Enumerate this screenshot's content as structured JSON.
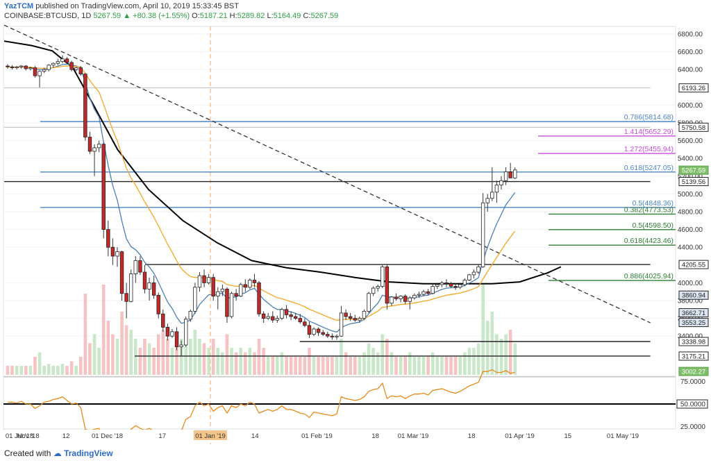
{
  "header": {
    "author": "YazTCM",
    "published_text": "published on TradingView.com, April 10, 2019 15:33:45 BST",
    "symbol": "COINBASE:BTCUSD, 1D",
    "last": "5267.59",
    "change": "+80.38 (+1.55%)",
    "o_label": "O:",
    "o_value": "5187.21",
    "h_label": "H:",
    "h_value": "5289.82",
    "l_label": "L:",
    "l_value": "5164.49",
    "c_label": "C:",
    "c_value": "5267.59"
  },
  "footer": {
    "created_with": "Created with",
    "brand": "TradingView"
  },
  "colors": {
    "up": "#26a69a",
    "down": "#c62828",
    "ema_fast": "#4a7fb5",
    "ema_mid": "#f5a623",
    "sma_long": "#000000",
    "fib_blue": "#4a86c8",
    "fib_green": "#2e7d32",
    "ext_purple": "#c84cdb",
    "rsi": "#e88a1a",
    "volume": "#f3b8b8"
  },
  "chart_data": {
    "type": "candlestick",
    "price_ticks": [
      "6800.00",
      "6600.00",
      "6400.00",
      "6000.00",
      "5800.00",
      "5600.00",
      "5400.00",
      "5200.00",
      "5000.00",
      "4800.00",
      "4600.00",
      "4400.00",
      "4000.00",
      "3800.00",
      "3600.00",
      "3400.00"
    ],
    "rsi_ticks": [
      "75.0000",
      "50.0000",
      "25.0000"
    ],
    "x_ticks": [
      {
        "label": "01 Jul '18",
        "x": 0
      },
      {
        "label": "Nov '18",
        "x": 7
      },
      {
        "label": "12",
        "x": 18
      },
      {
        "label": "01 Dec '18",
        "x": 30
      },
      {
        "label": "17",
        "x": 46
      },
      {
        "label": "01 Jan '19",
        "x": 60
      },
      {
        "label": "14",
        "x": 73
      },
      {
        "label": "01 Feb '19",
        "x": 91
      },
      {
        "label": "18",
        "x": 108
      },
      {
        "label": "01 Mar '19",
        "x": 119
      },
      {
        "label": "18",
        "x": 136
      },
      {
        "label": "01 Apr '19",
        "x": 150
      },
      {
        "label": "15",
        "x": 164
      },
      {
        "label": "01 May '19",
        "x": 180
      }
    ],
    "highlighted_x_tick": "01 Jan '19",
    "level_labels": [
      {
        "text": "6193.26",
        "price": 6193.26
      },
      {
        "text": "5750.58",
        "price": 5750.58
      },
      {
        "text": "5267.59",
        "price": 5267.59
      },
      {
        "text": "5139.56",
        "price": 5139.56
      },
      {
        "text": "4205.55",
        "price": 4205.55
      },
      {
        "text": "3860.94",
        "price": 3860.94
      },
      {
        "text": "3662.71",
        "price": 3662.71
      },
      {
        "text": "3553.25",
        "price": 3553.25
      },
      {
        "text": "3338.98",
        "price": 3338.98
      },
      {
        "text": "3175.21",
        "price": 3175.21
      },
      {
        "text": "3002.27",
        "price": 3002.27
      }
    ],
    "fib_levels": [
      {
        "label": "0.786(5814.68)",
        "price": 5814.68,
        "style": "blue"
      },
      {
        "label": "0.618(5247.05)",
        "price": 5247.05,
        "style": "blue"
      },
      {
        "label": "0.5(4848.36)",
        "price": 4848.36,
        "style": "blue"
      },
      {
        "label": "0.382(4773.53)",
        "price": 4773.53,
        "style": "green"
      },
      {
        "label": "0.5(4598.50)",
        "price": 4598.5,
        "style": "green"
      },
      {
        "label": "0.618(4423.46)",
        "price": 4423.46,
        "style": "green"
      },
      {
        "label": "0.886(4025.94)",
        "price": 4025.94,
        "style": "green"
      }
    ],
    "ext_levels": [
      {
        "label": "1.414(5652.29)",
        "price": 5652.29
      },
      {
        "label": "1.272(5455.94)",
        "price": 5455.94
      }
    ],
    "support_resistance": [
      {
        "price": 6193.26,
        "x_from": 0,
        "x_to": 188,
        "style": "gray"
      },
      {
        "price": 5750.58,
        "x_from": 0,
        "x_to": 188,
        "style": "gray"
      },
      {
        "price": 5139.56,
        "x_from": 0,
        "x_to": 188,
        "style": "black"
      },
      {
        "price": 4205.55,
        "x_from": 41,
        "x_to": 188,
        "style": "black"
      },
      {
        "price": 3338.98,
        "x_from": 86,
        "x_to": 188,
        "style": "black"
      },
      {
        "price": 3175.21,
        "x_from": 38,
        "x_to": 188,
        "style": "black"
      }
    ],
    "candles": [
      [
        6440,
        6460,
        6410,
        6430
      ],
      [
        6430,
        6450,
        6400,
        6420
      ],
      [
        6420,
        6440,
        6400,
        6430
      ],
      [
        6430,
        6450,
        6410,
        6440
      ],
      [
        6440,
        6450,
        6390,
        6410
      ],
      [
        6410,
        6430,
        6390,
        6420
      ],
      [
        6420,
        6440,
        6310,
        6330
      ],
      [
        6330,
        6390,
        6200,
        6380
      ],
      [
        6380,
        6420,
        6360,
        6400
      ],
      [
        6400,
        6460,
        6380,
        6450
      ],
      [
        6450,
        6480,
        6420,
        6470
      ],
      [
        6470,
        6520,
        6450,
        6490
      ],
      [
        6490,
        6560,
        6470,
        6520
      ],
      [
        6520,
        6540,
        6460,
        6480
      ],
      [
        6480,
        6500,
        6380,
        6400
      ],
      [
        6400,
        6430,
        6380,
        6420
      ],
      [
        6420,
        6440,
        6330,
        6350
      ],
      [
        6350,
        6360,
        5600,
        5640
      ],
      [
        5640,
        5700,
        5450,
        5480
      ],
      [
        5480,
        5560,
        5200,
        5520
      ],
      [
        5520,
        5600,
        5470,
        5560
      ],
      [
        5560,
        5580,
        4500,
        4600
      ],
      [
        4600,
        4700,
        4300,
        4400
      ],
      [
        4400,
        4500,
        4200,
        4300
      ],
      [
        4300,
        4400,
        4180,
        4350
      ],
      [
        4350,
        4360,
        3800,
        3880
      ],
      [
        3880,
        4000,
        3600,
        3790
      ],
      [
        3790,
        4150,
        3780,
        4100
      ],
      [
        4100,
        4300,
        4000,
        4250
      ],
      [
        4250,
        4300,
        4090,
        4120
      ],
      [
        4120,
        4200,
        3880,
        3930
      ],
      [
        3930,
        4060,
        3800,
        4000
      ],
      [
        4000,
        4080,
        3820,
        3860
      ],
      [
        3860,
        3890,
        3600,
        3650
      ],
      [
        3650,
        3700,
        3450,
        3500
      ],
      [
        3500,
        3540,
        3350,
        3400
      ],
      [
        3400,
        3480,
        3380,
        3450
      ],
      [
        3450,
        3500,
        3240,
        3280
      ],
      [
        3280,
        3350,
        3180,
        3300
      ],
      [
        3300,
        3620,
        3280,
        3590
      ],
      [
        3590,
        3700,
        3560,
        3680
      ],
      [
        3680,
        4000,
        3650,
        3950
      ],
      [
        3950,
        4120,
        3900,
        4080
      ],
      [
        4080,
        4150,
        3950,
        4000
      ],
      [
        4000,
        4100,
        3980,
        4060
      ],
      [
        4060,
        4100,
        3800,
        3850
      ],
      [
        3850,
        3950,
        3700,
        3900
      ],
      [
        3900,
        3980,
        3850,
        3930
      ],
      [
        3930,
        3950,
        3550,
        3620
      ],
      [
        3620,
        3900,
        3600,
        3880
      ],
      [
        3880,
        3930,
        3800,
        3850
      ],
      [
        3850,
        4000,
        3840,
        3980
      ],
      [
        3980,
        4040,
        3900,
        3950
      ],
      [
        3950,
        4050,
        3930,
        4030
      ],
      [
        4030,
        4100,
        3950,
        4000
      ],
      [
        4000,
        4020,
        3620,
        3650
      ],
      [
        3650,
        3680,
        3550,
        3600
      ],
      [
        3600,
        3660,
        3580,
        3620
      ],
      [
        3620,
        3680,
        3550,
        3580
      ],
      [
        3580,
        3630,
        3550,
        3600
      ],
      [
        3600,
        3720,
        3580,
        3700
      ],
      [
        3700,
        3750,
        3600,
        3640
      ],
      [
        3640,
        3680,
        3580,
        3620
      ],
      [
        3620,
        3660,
        3580,
        3600
      ],
      [
        3600,
        3650,
        3540,
        3560
      ],
      [
        3560,
        3600,
        3500,
        3520
      ],
      [
        3520,
        3560,
        3380,
        3420
      ],
      [
        3420,
        3500,
        3400,
        3480
      ],
      [
        3480,
        3500,
        3400,
        3440
      ],
      [
        3440,
        3470,
        3400,
        3420
      ],
      [
        3420,
        3450,
        3380,
        3400
      ],
      [
        3400,
        3430,
        3360,
        3390
      ],
      [
        3390,
        3420,
        3360,
        3400
      ],
      [
        3400,
        3740,
        3390,
        3660
      ],
      [
        3660,
        3700,
        3580,
        3620
      ],
      [
        3620,
        3660,
        3570,
        3600
      ],
      [
        3600,
        3640,
        3560,
        3580
      ],
      [
        3580,
        3620,
        3550,
        3600
      ],
      [
        3600,
        3700,
        3580,
        3680
      ],
      [
        3680,
        3900,
        3660,
        3880
      ],
      [
        3880,
        3960,
        3850,
        3940
      ],
      [
        3940,
        3980,
        3900,
        3960
      ],
      [
        3960,
        4200,
        3940,
        4180
      ],
      [
        4180,
        4200,
        3700,
        3770
      ],
      [
        3770,
        3850,
        3740,
        3840
      ],
      [
        3840,
        3880,
        3800,
        3820
      ],
      [
        3820,
        3860,
        3780,
        3850
      ],
      [
        3850,
        3870,
        3760,
        3790
      ],
      [
        3790,
        3850,
        3700,
        3830
      ],
      [
        3830,
        3880,
        3810,
        3860
      ],
      [
        3860,
        3900,
        3830,
        3870
      ],
      [
        3870,
        3920,
        3850,
        3900
      ],
      [
        3900,
        3930,
        3860,
        3880
      ],
      [
        3880,
        3990,
        3870,
        3960
      ],
      [
        3960,
        4000,
        3930,
        3980
      ],
      [
        3980,
        4020,
        3950,
        4000
      ],
      [
        4000,
        4040,
        3950,
        3990
      ],
      [
        3990,
        4010,
        3940,
        3960
      ],
      [
        3960,
        3990,
        3920,
        3950
      ],
      [
        3950,
        4000,
        3930,
        3980
      ],
      [
        3980,
        4050,
        3960,
        4030
      ],
      [
        4030,
        4100,
        4020,
        4090
      ],
      [
        4090,
        4150,
        4050,
        4120
      ],
      [
        4120,
        4200,
        4100,
        4180
      ],
      [
        4180,
        5010,
        4170,
        4900
      ],
      [
        4900,
        5000,
        4800,
        4950
      ],
      [
        4950,
        5300,
        4920,
        5020
      ],
      [
        5020,
        5150,
        4900,
        5100
      ],
      [
        5100,
        5200,
        5050,
        5150
      ],
      [
        5150,
        5300,
        5100,
        5250
      ],
      [
        5250,
        5350,
        5200,
        5180
      ],
      [
        5180,
        5300,
        5170,
        5270
      ]
    ],
    "candle_x_offset": 1,
    "candle_x_step": 1.33,
    "volume": [
      0.1,
      0.1,
      0.1,
      0.1,
      0.1,
      0.1,
      0.2,
      0.25,
      0.1,
      0.12,
      0.1,
      0.1,
      0.12,
      0.1,
      0.15,
      0.1,
      0.2,
      0.9,
      0.35,
      0.45,
      0.3,
      1.0,
      0.6,
      0.45,
      0.4,
      0.7,
      0.55,
      0.5,
      0.4,
      0.3,
      0.4,
      0.35,
      0.3,
      0.45,
      0.5,
      0.4,
      0.3,
      0.45,
      0.4,
      0.55,
      0.4,
      0.5,
      0.4,
      0.35,
      0.3,
      0.4,
      0.3,
      0.25,
      0.45,
      0.3,
      0.25,
      0.3,
      0.25,
      0.3,
      0.25,
      0.4,
      0.3,
      0.2,
      0.2,
      0.2,
      0.25,
      0.2,
      0.2,
      0.2,
      0.2,
      0.2,
      0.3,
      0.2,
      0.2,
      0.2,
      0.2,
      0.2,
      0.2,
      0.4,
      0.25,
      0.2,
      0.2,
      0.2,
      0.25,
      0.35,
      0.3,
      0.25,
      0.45,
      0.4,
      0.25,
      0.2,
      0.2,
      0.2,
      0.25,
      0.2,
      0.2,
      0.2,
      0.2,
      0.25,
      0.2,
      0.2,
      0.2,
      0.2,
      0.2,
      0.2,
      0.25,
      0.3,
      0.3,
      0.35,
      1.0,
      0.6,
      0.7,
      0.45,
      0.4,
      0.45,
      0.5,
      0.35
    ],
    "sma_long_pts": [
      [
        0,
        6720
      ],
      [
        8,
        6670
      ],
      [
        14,
        6610
      ],
      [
        20,
        6420
      ],
      [
        26,
        6000
      ],
      [
        33,
        5500
      ],
      [
        42,
        5050
      ],
      [
        52,
        4700
      ],
      [
        62,
        4450
      ],
      [
        72,
        4250
      ],
      [
        82,
        4170
      ],
      [
        92,
        4120
      ],
      [
        102,
        4060
      ],
      [
        112,
        4010
      ],
      [
        122,
        3990
      ],
      [
        132,
        3990
      ],
      [
        142,
        3990
      ],
      [
        150,
        4010
      ],
      [
        158,
        4110
      ],
      [
        162,
        4180
      ]
    ],
    "trendline": [
      [
        0,
        6900
      ],
      [
        188,
        3550
      ]
    ],
    "vertical_marker_x": 60,
    "rsi_values": [
      52,
      52,
      51,
      53,
      50,
      50,
      45,
      48,
      52,
      53,
      55,
      56,
      58,
      54,
      50,
      51,
      46,
      22,
      20,
      22,
      23,
      14,
      16,
      15,
      18,
      14,
      16,
      22,
      26,
      23,
      21,
      23,
      20,
      18,
      17,
      16,
      19,
      17,
      20,
      33,
      36,
      48,
      52,
      48,
      50,
      42,
      46,
      48,
      40,
      48,
      46,
      50,
      48,
      52,
      50,
      40,
      42,
      44,
      42,
      44,
      48,
      44,
      44,
      42,
      40,
      39,
      35,
      41,
      40,
      39,
      38,
      37,
      39,
      58,
      56,
      55,
      54,
      55,
      58,
      64,
      66,
      67,
      73,
      56,
      59,
      58,
      59,
      56,
      59,
      61,
      61,
      62,
      60,
      65,
      66,
      67,
      65,
      63,
      62,
      64,
      67,
      70,
      72,
      74,
      86,
      86,
      88,
      85,
      85,
      87,
      84,
      85
    ],
    "rsi_levels": [
      80,
      50,
      20
    ]
  }
}
